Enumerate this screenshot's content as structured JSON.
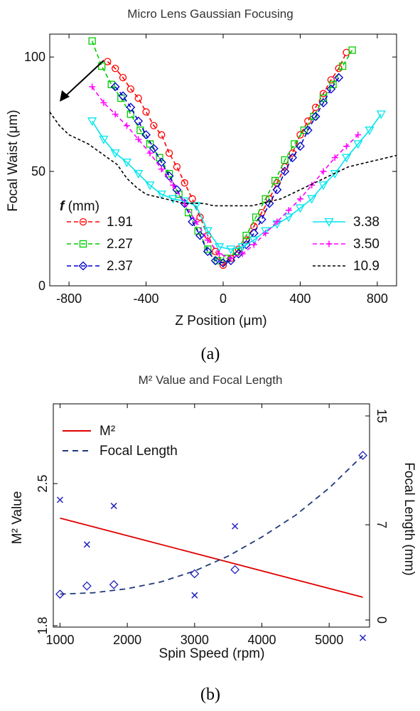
{
  "figure": {
    "caption_a": "(a)",
    "caption_b": "(b)"
  },
  "chart_data": [
    {
      "type": "line",
      "title": "Micro Lens Gaussian Focusing",
      "xlabel": "Z Position (μm)",
      "ylabel": "Focal Waist (μm)",
      "xlim": [
        -900,
        900
      ],
      "ylim": [
        0,
        110
      ],
      "xticks": [
        -800,
        -400,
        0,
        400,
        800
      ],
      "yticks": [
        0,
        50,
        100
      ],
      "grid": false,
      "legend_title": "f (mm)",
      "legend_title_italic": "f",
      "legend_title_rest": " (mm)",
      "series": [
        {
          "name": "1.91",
          "color": "#ff0000",
          "marker": "circle",
          "dash": "6,4",
          "x": [
            -600,
            -560,
            -520,
            -480,
            -440,
            -400,
            -360,
            -320,
            -280,
            -240,
            -200,
            -160,
            -120,
            -80,
            -40,
            0,
            40,
            80,
            120,
            160,
            200,
            240,
            280,
            320,
            360,
            400,
            440,
            480,
            520,
            560,
            600,
            640
          ],
          "y": [
            98,
            95,
            91,
            86,
            82,
            76,
            70,
            66,
            58,
            52,
            45,
            38,
            30,
            22,
            15,
            9,
            12,
            16,
            20,
            26,
            32,
            38,
            45,
            52,
            58,
            66,
            72,
            78,
            84,
            90,
            95,
            102
          ]
        },
        {
          "name": "2.27",
          "color": "#00cc00",
          "marker": "square",
          "dash": "6,4",
          "x": [
            -680,
            -630,
            -580,
            -530,
            -480,
            -430,
            -380,
            -330,
            -280,
            -230,
            -180,
            -130,
            -80,
            -30,
            20,
            70,
            120,
            170,
            220,
            270,
            320,
            370,
            420,
            470,
            520,
            570,
            620,
            670
          ],
          "y": [
            107,
            96,
            88,
            82,
            75,
            68,
            62,
            56,
            49,
            40,
            32,
            24,
            16,
            11,
            12,
            15,
            22,
            30,
            38,
            46,
            55,
            62,
            68,
            74,
            82,
            88,
            96,
            103
          ]
        },
        {
          "name": "2.37",
          "color": "#0000cc",
          "marker": "diamond",
          "dash": "6,4",
          "x": [
            -560,
            -520,
            -480,
            -440,
            -400,
            -360,
            -320,
            -280,
            -240,
            -200,
            -160,
            -120,
            -80,
            -40,
            0,
            40,
            80,
            120,
            160,
            200,
            240,
            280,
            320,
            360,
            400,
            440,
            480,
            520,
            560,
            600
          ],
          "y": [
            87,
            83,
            78,
            72,
            66,
            60,
            54,
            48,
            42,
            36,
            28,
            22,
            15,
            11,
            10,
            11,
            14,
            18,
            23,
            29,
            36,
            42,
            50,
            56,
            61,
            68,
            74,
            80,
            86,
            91
          ]
        },
        {
          "name": "3.38",
          "color": "#00e5ee",
          "marker": "triangle-down",
          "dash": "",
          "x": [
            -680,
            -620,
            -560,
            -500,
            -440,
            -380,
            -320,
            -260,
            -200,
            -140,
            -80,
            -20,
            40,
            100,
            160,
            220,
            280,
            340,
            400,
            460,
            520,
            580,
            640,
            700,
            760,
            820
          ],
          "y": [
            72,
            64,
            58,
            54,
            49,
            44,
            40,
            38,
            37,
            35,
            24,
            17,
            16,
            17,
            20,
            24,
            27,
            30,
            34,
            38,
            44,
            49,
            56,
            62,
            68,
            75
          ]
        },
        {
          "name": "3.50",
          "color": "#ff00ff",
          "marker": "plus",
          "dash": "6,4",
          "x": [
            -680,
            -620,
            -560,
            -500,
            -440,
            -380,
            -320,
            -260,
            -200,
            -140,
            -80,
            -20,
            40,
            100,
            160,
            220,
            280,
            340,
            400,
            460,
            520,
            580,
            640,
            700
          ],
          "y": [
            87,
            80,
            75,
            70,
            64,
            58,
            51,
            44,
            36,
            28,
            20,
            14,
            12,
            14,
            18,
            23,
            28,
            33,
            38,
            44,
            50,
            56,
            61,
            66
          ]
        },
        {
          "name": "10.9",
          "color": "#000000",
          "marker": "none",
          "dash": "4,3",
          "x": [
            -900,
            -850,
            -800,
            -750,
            -700,
            -650,
            -600,
            -550,
            -500,
            -450,
            -400,
            -350,
            -300,
            -250,
            -200,
            -150,
            -100,
            -50,
            0,
            50,
            100,
            150,
            200,
            250,
            300,
            350,
            400,
            450,
            500,
            550,
            600,
            650,
            700,
            750,
            800,
            850,
            900
          ],
          "y": [
            76,
            70,
            66,
            64,
            62,
            59,
            56,
            53,
            47,
            43,
            40,
            39,
            38,
            37,
            36,
            36,
            36,
            35,
            35,
            35,
            35,
            35,
            36,
            37,
            38,
            40,
            42,
            44,
            46,
            48,
            50,
            52,
            53,
            54,
            55,
            56,
            57
          ]
        }
      ],
      "annotations": [
        {
          "type": "arrow",
          "direction": "up-left to down-left"
        }
      ]
    },
    {
      "type": "line",
      "title": "M² Value and Focal Length",
      "xlabel": "Spin Speed (rpm)",
      "ylabel": "M² Value",
      "y2label": "Focal Length (mm)",
      "xlim": [
        900,
        5600
      ],
      "ylim": [
        1.8,
        2.9
      ],
      "y2lim": [
        0,
        15
      ],
      "xticks": [
        1000,
        2000,
        3000,
        4000,
        5000
      ],
      "yticks": [
        1.8,
        2.5
      ],
      "yticklabels": [
        "1.8",
        "2.5"
      ],
      "y2ticks": [
        0,
        7,
        15
      ],
      "grid": false,
      "legend": {
        "placement": "top-left",
        "entries": [
          "M²",
          "Focal Length"
        ]
      },
      "series": [
        {
          "name": "M²",
          "kind": "fit-line",
          "axis": "left",
          "color": "#e00000",
          "x": [
            1000,
            5500
          ],
          "y": [
            2.33,
            1.94
          ]
        },
        {
          "name": "Focal Length",
          "kind": "fit-curve",
          "axis": "right",
          "color": "#1f3a7a",
          "x": [
            1000,
            1500,
            2000,
            2500,
            3000,
            3500,
            4000,
            4500,
            5000,
            5500
          ],
          "y": [
            1.9,
            2.0,
            2.3,
            2.8,
            3.6,
            4.7,
            6.1,
            7.7,
            9.7,
            12.1
          ]
        },
        {
          "name": "Focal Length data",
          "kind": "markers",
          "axis": "right",
          "marker": "diamond",
          "color": "#2222bb",
          "x": [
            1000,
            1400,
            1800,
            3000,
            3600,
            5500
          ],
          "y": [
            1.9,
            2.5,
            2.6,
            3.4,
            3.7,
            12.1
          ]
        },
        {
          "name": "M² data",
          "kind": "markers",
          "axis": "left",
          "marker": "x",
          "color": "#2222bb",
          "x": [
            1000,
            1400,
            1800,
            3000,
            3600,
            5500
          ],
          "y": [
            2.42,
            2.2,
            2.39,
            1.95,
            2.29,
            1.74
          ]
        }
      ]
    }
  ]
}
